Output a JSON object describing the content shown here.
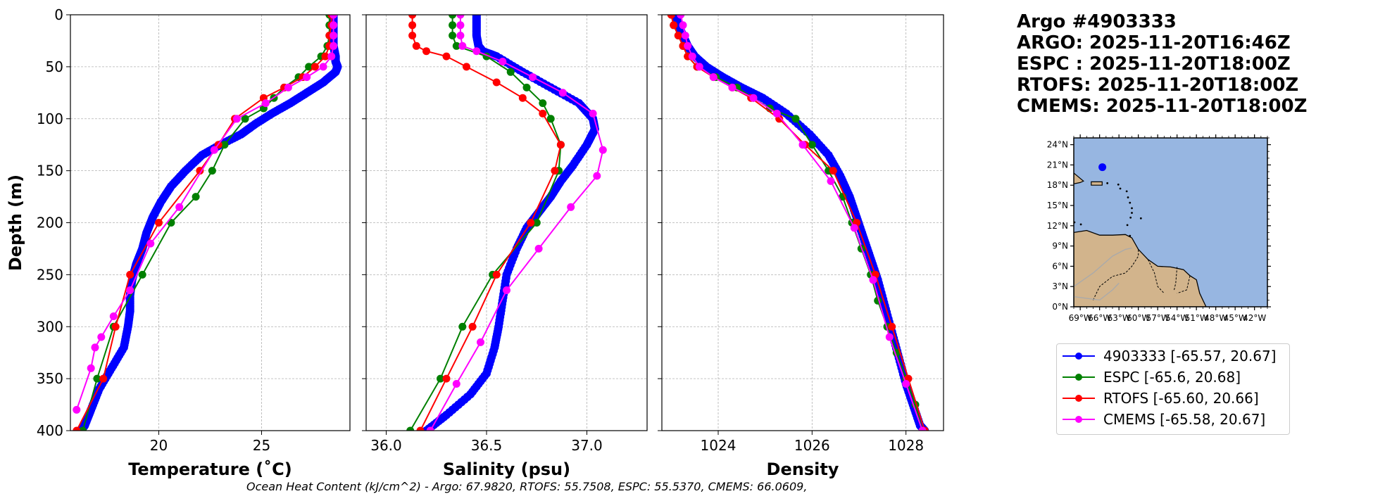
{
  "info": {
    "title": "Argo #4903333",
    "argo_time": "ARGO: 2025-11-20T16:46Z",
    "espc_time": "ESPC : 2025-11-20T18:00Z",
    "rtofs_time": "RTOFS: 2025-11-20T18:00Z",
    "cmems_time": "CMEMS: 2025-11-20T18:00Z"
  },
  "legend": [
    {
      "label": "4903333 [-65.57, 20.67]",
      "color": "#0000ff"
    },
    {
      "label": "ESPC [-65.6, 20.68]",
      "color": "#008000"
    },
    {
      "label": "RTOFS [-65.60, 20.66]",
      "color": "#ff0000"
    },
    {
      "label": "CMEMS [-65.58, 20.67]",
      "color": "#ff00ff"
    }
  ],
  "footer": "Ocean Heat Content (kJ/cm^2) - Argo: 67.9820,  RTOFS: 55.7508,  ESPC: 55.5370,  CMEMS: 66.0609,",
  "map": {
    "lat_ticks": [
      "0°N",
      "3°N",
      "6°N",
      "9°N",
      "12°N",
      "15°N",
      "18°N",
      "21°N",
      "24°N"
    ],
    "lon_ticks": [
      "69°W",
      "66°W",
      "63°W",
      "60°W",
      "57°W",
      "54°W",
      "51°W",
      "48°W",
      "45°W",
      "42°W"
    ],
    "float_lon": -65.57,
    "float_lat": 20.67,
    "ocean_color": "#97b6e1",
    "land_color": "#d2b48c"
  },
  "chart_data": [
    {
      "type": "line",
      "xlabel": "Temperature (˚C)",
      "ylabel": "Depth (m)",
      "xlim": [
        15.7,
        29.3
      ],
      "ylim": [
        400,
        0
      ],
      "xticks": [
        20,
        25
      ],
      "yticks": [
        0,
        50,
        100,
        150,
        200,
        250,
        300,
        350,
        400
      ],
      "grid": true,
      "series": [
        {
          "name": "4903333",
          "color": "#0000ff",
          "dense": true,
          "x": [
            28.5,
            28.5,
            28.5,
            28.5,
            28.6,
            28.6,
            28.7,
            28.6,
            28.0,
            27.2,
            26.4,
            25.5,
            24.7,
            24.0,
            23.0,
            22.1,
            21.3,
            20.6,
            20.1,
            19.7,
            19.4,
            19.2,
            18.9,
            18.7,
            18.6,
            18.6,
            18.5,
            18.3,
            17.7,
            17.1,
            16.7,
            16.4,
            16.2
          ],
          "y": [
            0,
            10,
            20,
            30,
            40,
            45,
            50,
            55,
            65,
            75,
            85,
            95,
            105,
            115,
            125,
            135,
            150,
            165,
            180,
            195,
            210,
            225,
            240,
            255,
            270,
            285,
            300,
            320,
            340,
            360,
            380,
            395,
            400
          ]
        },
        {
          "name": "ESPC",
          "color": "#008000",
          "x": [
            28.3,
            28.3,
            28.3,
            28.2,
            27.9,
            27.3,
            26.8,
            26.1,
            25.6,
            25.1,
            24.2,
            23.2,
            22.6,
            21.8,
            20.6,
            19.2,
            17.8,
            17.0,
            16.3
          ],
          "y": [
            0,
            10,
            20,
            30,
            40,
            50,
            60,
            70,
            80,
            90,
            100,
            125,
            150,
            175,
            200,
            250,
            300,
            350,
            400
          ]
        },
        {
          "name": "RTOFS",
          "color": "#ff0000",
          "x": [
            28.4,
            28.4,
            28.3,
            28.3,
            28.1,
            27.6,
            27.0,
            26.1,
            25.1,
            23.7,
            22.9,
            22.0,
            20.0,
            18.6,
            17.9,
            17.3,
            16.0
          ],
          "y": [
            0,
            10,
            20,
            30,
            40,
            50,
            60,
            70,
            80,
            100,
            125,
            150,
            200,
            250,
            300,
            350,
            400
          ]
        },
        {
          "name": "CMEMS",
          "color": "#ff00ff",
          "x": [
            28.5,
            28.5,
            28.5,
            28.5,
            28.4,
            28.0,
            27.2,
            26.3,
            25.2,
            23.8,
            22.7,
            21.0,
            19.6,
            18.6,
            17.8,
            17.2,
            16.9,
            16.7,
            16.0
          ],
          "y": [
            0,
            10,
            20,
            30,
            40,
            50,
            60,
            70,
            85,
            100,
            130,
            185,
            220,
            265,
            290,
            310,
            320,
            340,
            380
          ]
        }
      ]
    },
    {
      "type": "line",
      "xlabel": "Salinity (psu)",
      "ylabel": "",
      "xlim": [
        35.9,
        37.3
      ],
      "ylim": [
        400,
        0
      ],
      "xticks": [
        36.0,
        36.5,
        37.0
      ],
      "yticks": [
        0,
        50,
        100,
        150,
        200,
        250,
        300,
        350,
        400
      ],
      "grid": true,
      "series": [
        {
          "name": "4903333",
          "color": "#0000ff",
          "dense": true,
          "x": [
            36.45,
            36.45,
            36.45,
            36.46,
            36.48,
            36.55,
            36.68,
            36.82,
            36.96,
            37.03,
            37.04,
            37.0,
            36.93,
            36.87,
            36.82,
            36.76,
            36.7,
            36.65,
            36.6,
            36.58,
            36.56,
            36.54,
            36.5,
            36.42,
            36.3,
            36.2
          ],
          "y": [
            0,
            10,
            20,
            30,
            35,
            40,
            55,
            70,
            85,
            100,
            110,
            125,
            145,
            160,
            175,
            190,
            205,
            225,
            250,
            275,
            300,
            320,
            345,
            365,
            385,
            400
          ]
        },
        {
          "name": "ESPC",
          "color": "#008000",
          "x": [
            36.33,
            36.33,
            36.33,
            36.35,
            36.5,
            36.62,
            36.7,
            36.78,
            36.82,
            36.87,
            36.86,
            36.75,
            36.53,
            36.38,
            36.27,
            36.12
          ],
          "y": [
            0,
            10,
            20,
            30,
            40,
            55,
            70,
            85,
            100,
            125,
            150,
            200,
            250,
            300,
            350,
            400
          ]
        },
        {
          "name": "RTOFS",
          "color": "#ff0000",
          "x": [
            36.13,
            36.13,
            36.13,
            36.15,
            36.2,
            36.3,
            36.4,
            36.55,
            36.68,
            36.78,
            36.87,
            36.84,
            36.72,
            36.55,
            36.43,
            36.3,
            36.17
          ],
          "y": [
            0,
            10,
            20,
            30,
            35,
            40,
            50,
            65,
            80,
            95,
            125,
            150,
            200,
            250,
            300,
            350,
            400
          ]
        },
        {
          "name": "CMEMS",
          "color": "#ff00ff",
          "x": [
            36.37,
            36.37,
            36.37,
            36.38,
            36.45,
            36.58,
            36.73,
            36.88,
            37.03,
            37.08,
            37.05,
            36.92,
            36.76,
            36.6,
            36.47,
            36.35,
            36.22
          ],
          "y": [
            0,
            10,
            20,
            30,
            35,
            45,
            60,
            75,
            95,
            130,
            155,
            185,
            225,
            265,
            315,
            355,
            400
          ]
        }
      ]
    },
    {
      "type": "line",
      "xlabel": "Density",
      "ylabel": "",
      "xlim": [
        1022.8,
        1028.8
      ],
      "ylim": [
        400,
        0
      ],
      "xticks": [
        1024,
        1026,
        1028
      ],
      "yticks": [
        0,
        50,
        100,
        150,
        200,
        250,
        300,
        350,
        400
      ],
      "grid": true,
      "series": [
        {
          "name": "4903333",
          "color": "#0000ff",
          "dense": true,
          "x": [
            1023.1,
            1023.15,
            1023.25,
            1023.35,
            1023.5,
            1023.75,
            1024.1,
            1024.5,
            1024.95,
            1025.45,
            1025.95,
            1026.35,
            1026.6,
            1026.8,
            1026.95,
            1027.1,
            1027.25,
            1027.4,
            1027.55,
            1027.7,
            1027.85,
            1028.0,
            1028.15,
            1028.3,
            1028.4
          ],
          "y": [
            0,
            10,
            20,
            30,
            40,
            50,
            60,
            70,
            80,
            95,
            115,
            135,
            155,
            175,
            195,
            215,
            235,
            255,
            280,
            305,
            330,
            355,
            375,
            395,
            400
          ]
        },
        {
          "name": "ESPC",
          "color": "#008000",
          "x": [
            1023.0,
            1023.05,
            1023.15,
            1023.25,
            1023.35,
            1023.55,
            1023.95,
            1024.4,
            1024.75,
            1025.1,
            1025.65,
            1026.0,
            1026.35,
            1026.65,
            1026.85,
            1027.05,
            1027.25,
            1027.4,
            1027.6,
            1027.8,
            1028.0,
            1028.2,
            1028.35
          ],
          "y": [
            0,
            10,
            20,
            30,
            40,
            50,
            60,
            70,
            80,
            90,
            100,
            125,
            150,
            175,
            200,
            225,
            250,
            275,
            300,
            325,
            350,
            375,
            400
          ]
        },
        {
          "name": "RTOFS",
          "color": "#ff0000",
          "x": [
            1023.0,
            1023.05,
            1023.15,
            1023.25,
            1023.35,
            1023.55,
            1023.9,
            1024.3,
            1024.7,
            1025.3,
            1025.85,
            1026.45,
            1026.95,
            1027.35,
            1027.7,
            1028.05,
            1028.4
          ],
          "y": [
            0,
            10,
            20,
            30,
            40,
            50,
            60,
            70,
            80,
            100,
            125,
            150,
            200,
            250,
            300,
            350,
            400
          ]
        },
        {
          "name": "CMEMS",
          "color": "#ff00ff",
          "x": [
            1023.2,
            1023.25,
            1023.3,
            1023.35,
            1023.45,
            1023.6,
            1023.9,
            1024.3,
            1024.75,
            1025.25,
            1025.8,
            1026.4,
            1026.9,
            1027.3,
            1027.65,
            1028.0,
            1028.35
          ],
          "y": [
            0,
            10,
            20,
            30,
            40,
            50,
            60,
            70,
            80,
            95,
            125,
            160,
            205,
            255,
            310,
            355,
            400
          ]
        }
      ]
    }
  ]
}
